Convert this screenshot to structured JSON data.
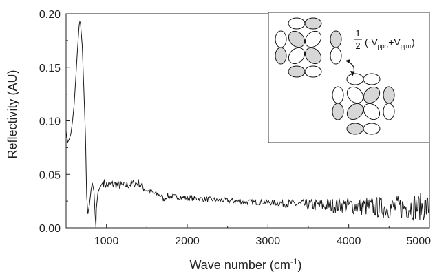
{
  "chart_data": {
    "type": "line",
    "title": "",
    "xlabel": "Wave number (cm",
    "xlabel_sup": "-1",
    "xlabel_close": ")",
    "ylabel": "Reflectivity (AU)",
    "xlim": [
      500,
      5000
    ],
    "ylim": [
      0,
      0.2
    ],
    "x_ticks": [
      1000,
      2000,
      3000,
      4000,
      5000
    ],
    "x_tick_labels": [
      "1000",
      "2000",
      "3000",
      "4000",
      "5000"
    ],
    "y_ticks": [
      0,
      0.05,
      0.1,
      0.15,
      0.2
    ],
    "y_tick_labels": [
      "0.00",
      "0.05",
      "0.10",
      "0.15",
      "0.20"
    ],
    "grid": false,
    "line_color": "#1a1a1a",
    "series": [
      {
        "values": [
          [
            500,
            0.09
          ],
          [
            520,
            0.08
          ],
          [
            540,
            0.083
          ],
          [
            560,
            0.088
          ],
          [
            580,
            0.1
          ],
          [
            600,
            0.115
          ],
          [
            620,
            0.14
          ],
          [
            640,
            0.165
          ],
          [
            660,
            0.188
          ],
          [
            670,
            0.193
          ],
          [
            680,
            0.19
          ],
          [
            700,
            0.17
          ],
          [
            720,
            0.13
          ],
          [
            740,
            0.085
          ],
          [
            755,
            0.03
          ],
          [
            770,
            0.013
          ],
          [
            790,
            0.022
          ],
          [
            810,
            0.036
          ],
          [
            825,
            0.042
          ],
          [
            845,
            0.034
          ],
          [
            860,
            0.012
          ],
          [
            870,
            0.0
          ],
          [
            875,
            0.018
          ],
          [
            895,
            0.033
          ],
          [
            920,
            0.038
          ],
          [
            960,
            0.043
          ],
          [
            1000,
            0.04
          ],
          [
            1100,
            0.041
          ],
          [
            1200,
            0.039
          ],
          [
            1300,
            0.041
          ],
          [
            1400,
            0.042
          ],
          [
            1450,
            0.038
          ],
          [
            1500,
            0.035
          ],
          [
            1600,
            0.032
          ],
          [
            1680,
            0.03
          ],
          [
            1710,
            0.026
          ],
          [
            1750,
            0.03
          ],
          [
            1850,
            0.029
          ],
          [
            2000,
            0.028
          ],
          [
            2200,
            0.027
          ],
          [
            2400,
            0.026
          ],
          [
            2600,
            0.025
          ],
          [
            2800,
            0.024
          ],
          [
            3000,
            0.024
          ],
          [
            3200,
            0.023
          ],
          [
            3400,
            0.022
          ],
          [
            3600,
            0.021
          ],
          [
            3800,
            0.021
          ],
          [
            4000,
            0.021
          ],
          [
            4200,
            0.02
          ],
          [
            4400,
            0.019
          ],
          [
            4600,
            0.019
          ],
          [
            4800,
            0.02
          ],
          [
            5000,
            0.019
          ]
        ]
      }
    ],
    "inset": {
      "fraction_numerator": "1",
      "fraction_denominator": "2",
      "formula_open": "(-V",
      "sub_sigma": "ppσ",
      "formula_plus": "+V",
      "sub_pi": "ppπ",
      "formula_close": ")"
    }
  }
}
